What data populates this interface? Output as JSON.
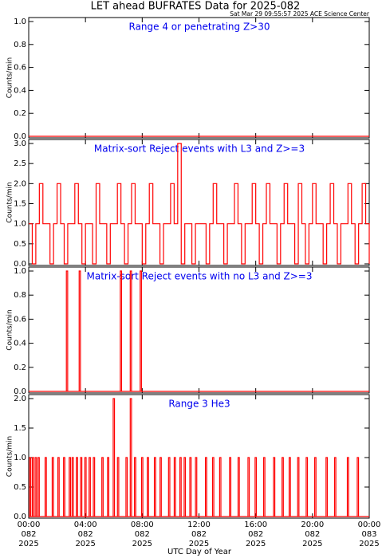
{
  "title": "LET ahead BUFRATES Data for 2025-082",
  "subtitle": "Sat Mar 29 09:55:57 2025 ACE Science Center",
  "xlabel": "UTC Day of Year",
  "chart_data": [
    {
      "type": "line",
      "title": "Range 4 or  penetrating Z>30",
      "ylabel": "Counts/min",
      "color": "#ff0000",
      "x": [
        0,
        24
      ],
      "values": [
        0,
        0
      ],
      "xlim": [
        0,
        24
      ],
      "xticks": [
        0,
        4,
        8,
        12,
        16,
        20,
        24
      ],
      "ylim": [
        0,
        1
      ],
      "yticks": [
        {
          "value": 0,
          "label": "0.0"
        },
        {
          "value": 0.2,
          "label": "0.2"
        },
        {
          "value": 0.4,
          "label": "0.4"
        },
        {
          "value": 0.6,
          "label": "0.6"
        },
        {
          "value": 0.8,
          "label": "0.8"
        },
        {
          "value": 1,
          "label": "1.0"
        }
      ]
    },
    {
      "type": "line",
      "step": true,
      "title": "Matrix-sort Reject events with L3 and Z>=3",
      "ylabel": "Counts/min",
      "color": "#ff0000",
      "x": [
        0,
        0.25,
        0.5,
        0.75,
        1,
        1.25,
        1.5,
        1.75,
        2,
        2.25,
        2.5,
        2.75,
        3,
        3.25,
        3.5,
        3.75,
        4,
        4.25,
        4.5,
        4.75,
        5,
        5.25,
        5.5,
        5.75,
        6,
        6.25,
        6.5,
        6.75,
        7,
        7.25,
        7.5,
        7.75,
        8,
        8.25,
        8.5,
        8.75,
        9,
        9.25,
        9.5,
        9.75,
        10,
        10.25,
        10.5,
        10.75,
        11,
        11.25,
        11.5,
        11.75,
        12,
        12.25,
        12.5,
        12.75,
        13,
        13.25,
        13.5,
        13.75,
        14,
        14.25,
        14.5,
        14.75,
        15,
        15.25,
        15.5,
        15.75,
        16,
        16.25,
        16.5,
        16.75,
        17,
        17.25,
        17.5,
        17.75,
        18,
        18.25,
        18.5,
        18.75,
        19,
        19.25,
        19.5,
        19.75,
        20,
        20.25,
        20.5,
        20.75,
        21,
        21.25,
        21.5,
        21.75,
        22,
        22.25,
        22.5,
        22.75,
        23,
        23.25,
        23.5,
        23.75,
        24
      ],
      "values": [
        1,
        0,
        1,
        2,
        1,
        1,
        0,
        1,
        2,
        1,
        0,
        1,
        1,
        2,
        1,
        0,
        1,
        1,
        0,
        2,
        1,
        1,
        0,
        1,
        1,
        2,
        1,
        0,
        1,
        2,
        1,
        1,
        0,
        1,
        2,
        1,
        1,
        0,
        1,
        1,
        2,
        1,
        3,
        0,
        1,
        1,
        0,
        1,
        1,
        1,
        0,
        1,
        2,
        1,
        1,
        0,
        1,
        1,
        2,
        1,
        0,
        1,
        1,
        2,
        1,
        0,
        1,
        2,
        1,
        1,
        0,
        1,
        2,
        1,
        1,
        0,
        2,
        1,
        0,
        1,
        2,
        1,
        1,
        0,
        1,
        2,
        1,
        0,
        1,
        1,
        2,
        1,
        0,
        1,
        2,
        1,
        0
      ],
      "xlim": [
        0,
        24
      ],
      "xticks": [
        0,
        4,
        8,
        12,
        16,
        20,
        24
      ],
      "ylim": [
        0,
        3
      ],
      "yticks": [
        {
          "value": 0,
          "label": "0.0"
        },
        {
          "value": 0.5,
          "label": "0.5"
        },
        {
          "value": 1,
          "label": "1.0"
        },
        {
          "value": 1.5,
          "label": "1.5"
        },
        {
          "value": 2,
          "label": "2.0"
        },
        {
          "value": 2.5,
          "label": "2.5"
        },
        {
          "value": 3,
          "label": "3.0"
        }
      ]
    },
    {
      "type": "spike",
      "title": "Matrix-sort Reject events with no L3 and Z>=3",
      "ylabel": "Counts/min",
      "color": "#ff0000",
      "x": [
        2.7,
        3.6,
        6.5,
        7.2,
        7.9
      ],
      "values": [
        1,
        1,
        1,
        1,
        1
      ],
      "xlim": [
        0,
        24
      ],
      "xticks": [
        0,
        4,
        8,
        12,
        16,
        20,
        24
      ],
      "ylim": [
        0,
        1
      ],
      "yticks": [
        {
          "value": 0,
          "label": "0.0"
        },
        {
          "value": 0.2,
          "label": "0.2"
        },
        {
          "value": 0.4,
          "label": "0.4"
        },
        {
          "value": 0.6,
          "label": "0.6"
        },
        {
          "value": 0.8,
          "label": "0.8"
        },
        {
          "value": 1,
          "label": "1.0"
        }
      ]
    },
    {
      "type": "spike",
      "title": "Range 3 He3",
      "ylabel": "Counts/min",
      "color": "#ff0000",
      "x": [
        0.1,
        0.3,
        0.5,
        0.7,
        1.2,
        1.7,
        2.1,
        2.5,
        2.9,
        3.1,
        3.4,
        3.7,
        4.0,
        4.3,
        4.6,
        5.2,
        5.6,
        6.0,
        6.3,
        6.9,
        7.2,
        7.5,
        8.0,
        8.4,
        8.9,
        9.3,
        9.9,
        10.3,
        10.7,
        11.0,
        11.4,
        11.8,
        12.5,
        13.0,
        13.5,
        14.2,
        14.8,
        15.5,
        16.0,
        16.6,
        17.3,
        17.9,
        18.4,
        19.0,
        19.6,
        20.2,
        21.0,
        21.6,
        22.5,
        23.2
      ],
      "values": [
        1,
        1,
        1,
        1,
        1,
        1,
        1,
        1,
        1,
        1,
        1,
        1,
        1,
        1,
        1,
        1,
        1,
        2,
        1,
        1,
        2,
        1,
        1,
        1,
        1,
        1,
        1,
        1,
        1,
        1,
        1,
        1,
        1,
        1,
        1,
        1,
        1,
        1,
        1,
        1,
        1,
        1,
        1,
        1,
        1,
        1,
        1,
        1,
        1,
        1
      ],
      "xlim": [
        0,
        24
      ],
      "xticks": [
        {
          "value": 0,
          "label": [
            "00:00",
            "082",
            "2025"
          ]
        },
        {
          "value": 4,
          "label": [
            "04:00",
            "082",
            "2025"
          ]
        },
        {
          "value": 8,
          "label": [
            "08:00",
            "082",
            "2025"
          ]
        },
        {
          "value": 12,
          "label": [
            "12:00",
            "082",
            "2025"
          ]
        },
        {
          "value": 16,
          "label": [
            "16:00",
            "082",
            "2025"
          ]
        },
        {
          "value": 20,
          "label": [
            "20:00",
            "082",
            "2025"
          ]
        },
        {
          "value": 24,
          "label": [
            "00:00",
            "083",
            "2025"
          ]
        }
      ],
      "ylim": [
        0,
        2
      ],
      "yticks": [
        {
          "value": 0,
          "label": "0.0"
        },
        {
          "value": 0.5,
          "label": "0.5"
        },
        {
          "value": 1,
          "label": "1.0"
        },
        {
          "value": 1.5,
          "label": "1.5"
        },
        {
          "value": 2,
          "label": "2.0"
        }
      ]
    }
  ]
}
